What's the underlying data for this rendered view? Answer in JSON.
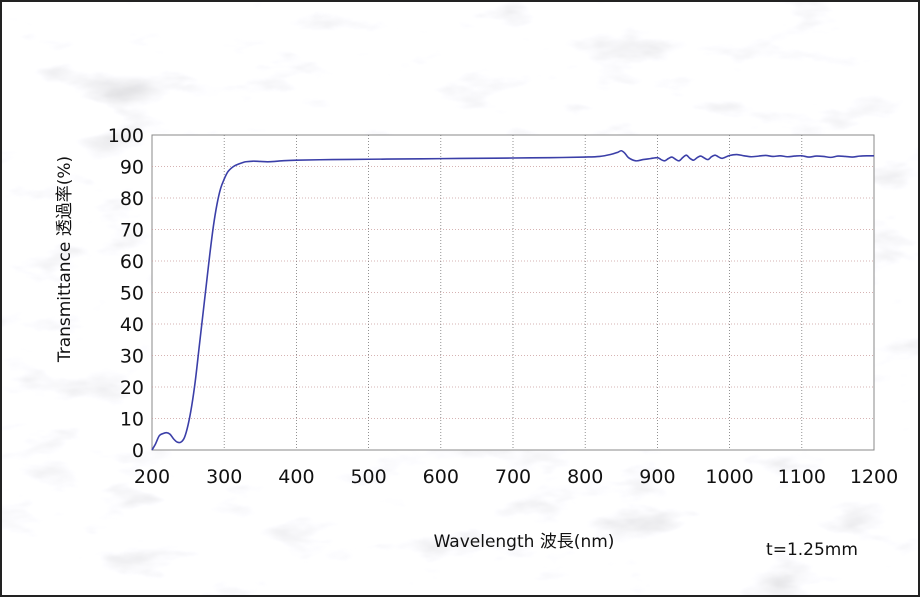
{
  "chart_data": {
    "type": "line",
    "title": "",
    "xlabel": "Wavelength 波長(nm)",
    "ylabel": "Transmittance 透過率(%)",
    "annotation": "t=1.25mm",
    "xlim": [
      200,
      1200
    ],
    "ylim": [
      0,
      100
    ],
    "x_ticks": [
      "200",
      "300",
      "400",
      "500",
      "600",
      "700",
      "800",
      "900",
      "1000",
      "1100",
      "1200"
    ],
    "y_ticks": [
      "0",
      "10",
      "20",
      "30",
      "40",
      "50",
      "60",
      "70",
      "80",
      "90",
      "100"
    ],
    "grid": true,
    "legend": "none",
    "line_color": "#3b3fa8",
    "series": [
      {
        "x": [
          200,
          205,
          210,
          215,
          220,
          225,
          230,
          235,
          240,
          245,
          250,
          255,
          260,
          265,
          270,
          275,
          280,
          285,
          290,
          295,
          300,
          305,
          310,
          315,
          320,
          325,
          330,
          340,
          350,
          360,
          370,
          380,
          400,
          450,
          500,
          550,
          600,
          650,
          700,
          750,
          800,
          820,
          835,
          845,
          850,
          855,
          860,
          870,
          880,
          890,
          900,
          905,
          910,
          915,
          920,
          925,
          930,
          935,
          940,
          945,
          950,
          955,
          960,
          965,
          970,
          975,
          980,
          985,
          990,
          1000,
          1010,
          1020,
          1030,
          1040,
          1050,
          1060,
          1070,
          1080,
          1090,
          1100,
          1110,
          1120,
          1130,
          1140,
          1150,
          1160,
          1170,
          1180,
          1190,
          1200
        ],
        "y": [
          0,
          2,
          4.5,
          5.2,
          5.5,
          5,
          3.5,
          2.5,
          2.5,
          4,
          8,
          14,
          22,
          32,
          42,
          52,
          62,
          71,
          78,
          83,
          86,
          88.3,
          89.5,
          90.3,
          90.8,
          91.2,
          91.5,
          91.7,
          91.6,
          91.5,
          91.6,
          91.8,
          92,
          92.2,
          92.3,
          92.4,
          92.5,
          92.6,
          92.7,
          92.8,
          93,
          93.2,
          93.8,
          94.5,
          95,
          94.2,
          92.8,
          91.8,
          92.2,
          92.5,
          92.8,
          92.2,
          91.8,
          92.5,
          93,
          92.3,
          91.8,
          92.8,
          93.6,
          92.6,
          92,
          92.8,
          93.3,
          92.7,
          92.2,
          93.1,
          93.6,
          93,
          92.6,
          93.5,
          93.8,
          93.4,
          93.1,
          93.3,
          93.5,
          93.2,
          93.4,
          93.1,
          93.3,
          93.4,
          93,
          93.3,
          93.2,
          92.9,
          93.3,
          93.2,
          93,
          93.3,
          93.4,
          93.4
        ]
      }
    ]
  }
}
